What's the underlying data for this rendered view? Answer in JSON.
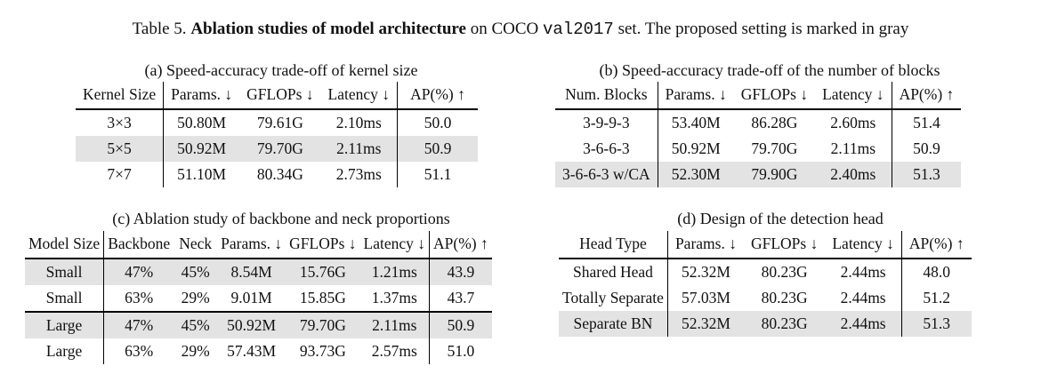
{
  "caption": {
    "prefix": "Table 5. ",
    "bold": "Ablation studies of model architecture",
    "middle": " on COCO ",
    "mono": "val2017",
    "suffix": " set. The proposed setting is marked in gray"
  },
  "table_a": {
    "title": "(a) Speed-accuracy trade-off of kernel size",
    "headers": [
      "Kernel Size",
      "Params. ↓",
      "GFLOPs ↓",
      "Latency ↓",
      "AP(%) ↑"
    ],
    "rows": [
      [
        "3×3",
        "50.80M",
        "79.61G",
        "2.10ms",
        "50.0"
      ],
      [
        "5×5",
        "50.92M",
        "79.70G",
        "2.11ms",
        "50.9"
      ],
      [
        "7×7",
        "51.10M",
        "80.34G",
        "2.73ms",
        "51.1"
      ]
    ]
  },
  "table_b": {
    "title": "(b) Speed-accuracy trade-off of the number of blocks",
    "headers": [
      "Num. Blocks",
      "Params. ↓",
      "GFLOPs ↓",
      "Latency ↓",
      "AP(%) ↑"
    ],
    "rows": [
      [
        "3-9-9-3",
        "53.40M",
        "86.28G",
        "2.60ms",
        "51.4"
      ],
      [
        "3-6-6-3",
        "50.92M",
        "79.70G",
        "2.11ms",
        "50.9"
      ],
      [
        "3-6-6-3 w/CA",
        "52.30M",
        "79.90G",
        "2.40ms",
        "51.3"
      ]
    ]
  },
  "table_c": {
    "title": "(c) Ablation study of backbone and neck proportions",
    "headers": [
      "Model Size",
      "Backbone",
      "Neck",
      "Params. ↓",
      "GFLOPs ↓",
      "Latency ↓",
      "AP(%) ↑"
    ],
    "rows": [
      [
        "Small",
        "47%",
        "45%",
        "8.54M",
        "15.76G",
        "1.21ms",
        "43.9"
      ],
      [
        "Small",
        "63%",
        "29%",
        "9.01M",
        "15.85G",
        "1.37ms",
        "43.7"
      ],
      [
        "Large",
        "47%",
        "45%",
        "50.92M",
        "79.70G",
        "2.11ms",
        "50.9"
      ],
      [
        "Large",
        "63%",
        "29%",
        "57.43M",
        "93.73G",
        "2.57ms",
        "51.0"
      ]
    ]
  },
  "table_d": {
    "title": "(d) Design of the detection head",
    "headers": [
      "Head Type",
      "Params. ↓",
      "GFLOPs ↓",
      "Latency ↓",
      "AP(%) ↑"
    ],
    "rows": [
      [
        "Shared Head",
        "52.32M",
        "80.23G",
        "2.44ms",
        "48.0"
      ],
      [
        "Totally Separate",
        "57.03M",
        "80.23G",
        "2.44ms",
        "51.2"
      ],
      [
        "Separate BN",
        "52.32M",
        "80.23G",
        "2.44ms",
        "51.3"
      ]
    ]
  },
  "colors": {
    "highlight": "#e3e3e3",
    "rule": "#000000"
  }
}
